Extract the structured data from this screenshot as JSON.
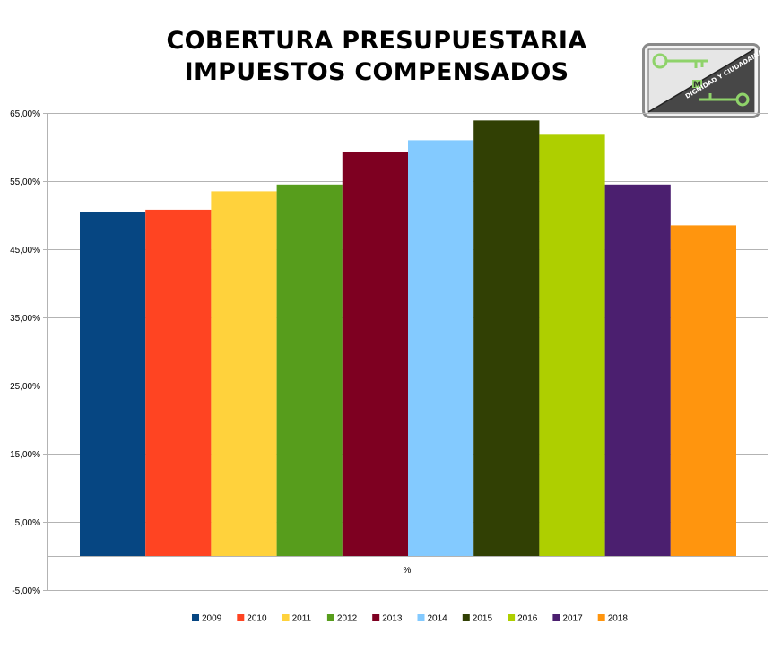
{
  "chart_data": {
    "type": "bar",
    "title_lines": [
      "COBERTURA PRESUPUESTARIA",
      "IMPUESTOS COMPENSADOS"
    ],
    "xlabel": "",
    "ylabel": "",
    "categories": [
      "%"
    ],
    "ylim": [
      -5,
      65
    ],
    "y_ticks": [
      "65,00%",
      "55,00%",
      "45,00%",
      "35,00%",
      "25,00%",
      "15,00%",
      "5,00%",
      "-5,00%"
    ],
    "y_tick_values": [
      65,
      55,
      45,
      35,
      25,
      15,
      5,
      -5
    ],
    "grid": true,
    "legend_position": "bottom",
    "series": [
      {
        "name": "2009",
        "values": [
          50.4
        ],
        "color": "#064682"
      },
      {
        "name": "2010",
        "values": [
          50.8
        ],
        "color": "#FF4422"
      },
      {
        "name": "2011",
        "values": [
          53.5
        ],
        "color": "#FFD23C"
      },
      {
        "name": "2012",
        "values": [
          54.5
        ],
        "color": "#579D1C"
      },
      {
        "name": "2013",
        "values": [
          59.3
        ],
        "color": "#7E0021"
      },
      {
        "name": "2014",
        "values": [
          61.0
        ],
        "color": "#83CAFF"
      },
      {
        "name": "2015",
        "values": [
          63.9
        ],
        "color": "#314004"
      },
      {
        "name": "2016",
        "values": [
          61.8
        ],
        "color": "#AECF00"
      },
      {
        "name": "2017",
        "values": [
          54.5
        ],
        "color": "#4B1F6F"
      },
      {
        "name": "2018",
        "values": [
          48.5
        ],
        "color": "#FF950E"
      }
    ]
  },
  "logo": {
    "text": "DIGNIDAD Y CIUDADANIA",
    "letter": "M",
    "colors": {
      "frame": "#8a8a8a",
      "dark": "#474747",
      "light": "#e6e6e6",
      "key": "#8fd36a"
    }
  }
}
